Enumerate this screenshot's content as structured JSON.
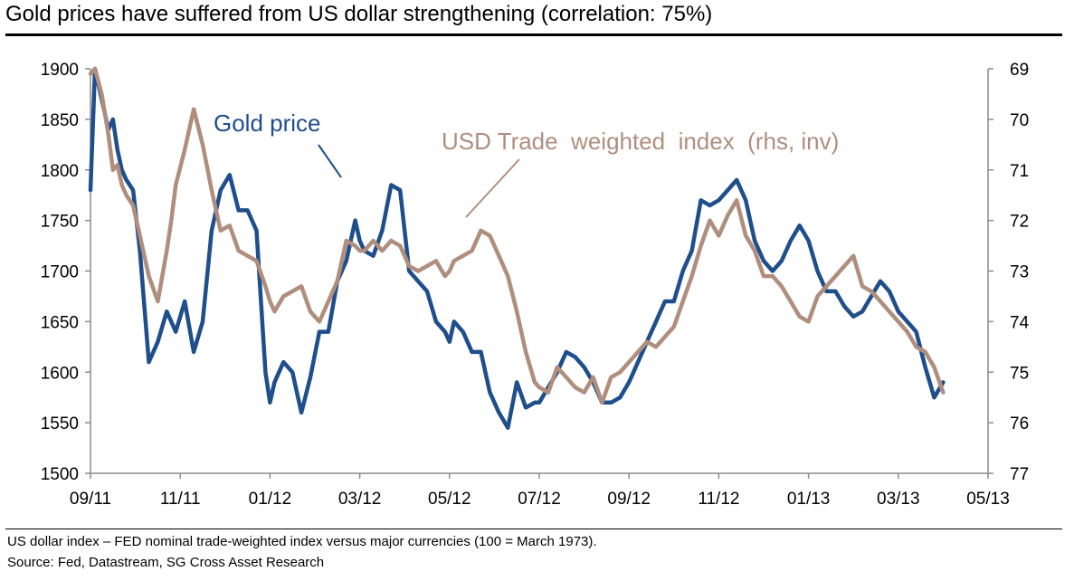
{
  "title": "Gold prices have suffered from US dollar strengthening (correlation: 75%)",
  "footnote": "US dollar index – FED nominal trade-weighted index versus major currencies (100 = March 1973).",
  "source": "Source: Fed, Datastream, SG Cross Asset Research",
  "colors": {
    "gold": "#1f4e8c",
    "usd": "#b08e7e",
    "axis": "#8c8c8c"
  },
  "chart_data": {
    "type": "line",
    "title": "Gold prices have suffered from US dollar strengthening (correlation: 75%)",
    "x_ticks": [
      "09/11",
      "11/11",
      "01/12",
      "03/12",
      "05/12",
      "07/12",
      "09/12",
      "11/12",
      "01/13",
      "03/13",
      "05/13"
    ],
    "x_unit": "months since 09/11",
    "x_range": [
      0,
      20
    ],
    "y_left": {
      "ticks": [
        "1900",
        "1850",
        "1800",
        "1750",
        "1700",
        "1650",
        "1600",
        "1550",
        "1500"
      ],
      "range": [
        1500,
        1900
      ]
    },
    "y_right": {
      "ticks": [
        "69",
        "70",
        "71",
        "72",
        "73",
        "74",
        "75",
        "76",
        "77"
      ],
      "range": [
        69,
        77
      ],
      "inverted": true
    },
    "grid": false,
    "annotations": {
      "gold": "Gold price",
      "usd": "USD Trade  weighted  index  (rhs, inv)"
    },
    "series": [
      {
        "name": "Gold price",
        "axis": "left",
        "x": [
          0,
          0.1,
          0.25,
          0.4,
          0.5,
          0.6,
          0.7,
          0.8,
          0.95,
          1.1,
          1.3,
          1.5,
          1.7,
          1.8,
          1.9,
          2.1,
          2.3,
          2.5,
          2.7,
          2.9,
          3.1,
          3.3,
          3.5,
          3.7,
          3.9,
          4.0,
          4.1,
          4.3,
          4.5,
          4.7,
          4.9,
          5.1,
          5.3,
          5.5,
          5.7,
          5.9,
          6.0,
          6.1,
          6.3,
          6.5,
          6.7,
          6.9,
          7.1,
          7.3,
          7.5,
          7.7,
          7.9,
          8.0,
          8.1,
          8.3,
          8.5,
          8.7,
          8.9,
          9.1,
          9.3,
          9.5,
          9.7,
          9.9,
          10.0,
          10.2,
          10.4,
          10.6,
          10.8,
          11.0,
          11.2,
          11.4,
          11.6,
          11.8,
          12.0,
          12.2,
          12.4,
          12.6,
          12.8,
          13.0,
          13.2,
          13.4,
          13.6,
          13.8,
          14.0,
          14.2,
          14.4,
          14.6,
          14.8,
          15.0,
          15.2,
          15.4,
          15.6,
          15.8,
          16.0,
          16.2,
          16.4,
          16.6,
          16.8,
          17.0,
          17.2,
          17.4,
          17.6,
          17.8,
          18.0,
          18.2,
          18.4,
          18.6,
          18.8,
          19.0
        ],
        "values": [
          1780,
          1900,
          1870,
          1840,
          1850,
          1820,
          1800,
          1790,
          1780,
          1720,
          1610,
          1630,
          1660,
          1650,
          1640,
          1670,
          1620,
          1650,
          1740,
          1780,
          1795,
          1760,
          1760,
          1740,
          1600,
          1570,
          1590,
          1610,
          1600,
          1560,
          1595,
          1640,
          1640,
          1690,
          1710,
          1750,
          1730,
          1720,
          1715,
          1740,
          1785,
          1780,
          1700,
          1690,
          1680,
          1650,
          1640,
          1630,
          1650,
          1640,
          1620,
          1620,
          1580,
          1560,
          1545,
          1590,
          1565,
          1570,
          1570,
          1585,
          1600,
          1620,
          1615,
          1605,
          1590,
          1570,
          1570,
          1575,
          1590,
          1610,
          1630,
          1650,
          1670,
          1670,
          1700,
          1720,
          1770,
          1765,
          1770,
          1780,
          1790,
          1770,
          1730,
          1710,
          1700,
          1710,
          1730,
          1745,
          1730,
          1700,
          1680,
          1680,
          1665,
          1655,
          1660,
          1675,
          1690,
          1680,
          1660,
          1650,
          1640,
          1605,
          1575,
          1590
        ]
      },
      {
        "name": "USD Trade weighted index (rhs, inv)",
        "axis": "right",
        "x": [
          0,
          0.1,
          0.25,
          0.4,
          0.5,
          0.6,
          0.7,
          0.8,
          0.95,
          1.1,
          1.3,
          1.5,
          1.7,
          1.8,
          1.9,
          2.1,
          2.3,
          2.5,
          2.7,
          2.9,
          3.1,
          3.3,
          3.5,
          3.7,
          3.9,
          4.0,
          4.1,
          4.3,
          4.5,
          4.7,
          4.9,
          5.1,
          5.3,
          5.5,
          5.7,
          5.9,
          6.0,
          6.1,
          6.3,
          6.5,
          6.7,
          6.9,
          7.1,
          7.3,
          7.5,
          7.7,
          7.9,
          8.0,
          8.1,
          8.3,
          8.5,
          8.7,
          8.9,
          9.1,
          9.3,
          9.5,
          9.7,
          9.9,
          10.0,
          10.2,
          10.4,
          10.6,
          10.8,
          11.0,
          11.2,
          11.4,
          11.6,
          11.8,
          12.0,
          12.2,
          12.4,
          12.6,
          12.8,
          13.0,
          13.2,
          13.4,
          13.6,
          13.8,
          14.0,
          14.2,
          14.4,
          14.6,
          14.8,
          15.0,
          15.2,
          15.4,
          15.6,
          15.8,
          16.0,
          16.2,
          16.4,
          16.6,
          16.8,
          17.0,
          17.2,
          17.4,
          17.6,
          17.8,
          18.0,
          18.2,
          18.4,
          18.6,
          18.8,
          19.0
        ],
        "values": [
          69.1,
          69.0,
          69.5,
          70.3,
          71.0,
          70.9,
          71.3,
          71.5,
          71.7,
          72.3,
          73.1,
          73.6,
          72.6,
          72.0,
          71.3,
          70.6,
          69.8,
          70.5,
          71.4,
          72.2,
          72.1,
          72.6,
          72.7,
          72.8,
          73.3,
          73.6,
          73.8,
          73.5,
          73.4,
          73.3,
          73.8,
          74.0,
          73.6,
          73.2,
          72.4,
          72.5,
          72.6,
          72.6,
          72.4,
          72.6,
          72.4,
          72.5,
          72.9,
          73.0,
          72.9,
          72.8,
          73.1,
          73.0,
          72.8,
          72.7,
          72.6,
          72.2,
          72.3,
          72.7,
          73.1,
          73.8,
          74.6,
          75.2,
          75.3,
          75.4,
          74.9,
          75.1,
          75.3,
          75.4,
          75.1,
          75.6,
          75.1,
          75.0,
          74.8,
          74.6,
          74.4,
          74.5,
          74.3,
          74.1,
          73.6,
          73.1,
          72.5,
          72.0,
          72.3,
          71.9,
          71.6,
          72.3,
          72.6,
          73.1,
          73.1,
          73.3,
          73.6,
          73.9,
          74.0,
          73.5,
          73.3,
          73.1,
          72.9,
          72.7,
          73.3,
          73.4,
          73.6,
          73.8,
          74.0,
          74.2,
          74.5,
          74.6,
          74.9,
          75.4
        ]
      }
    ]
  }
}
